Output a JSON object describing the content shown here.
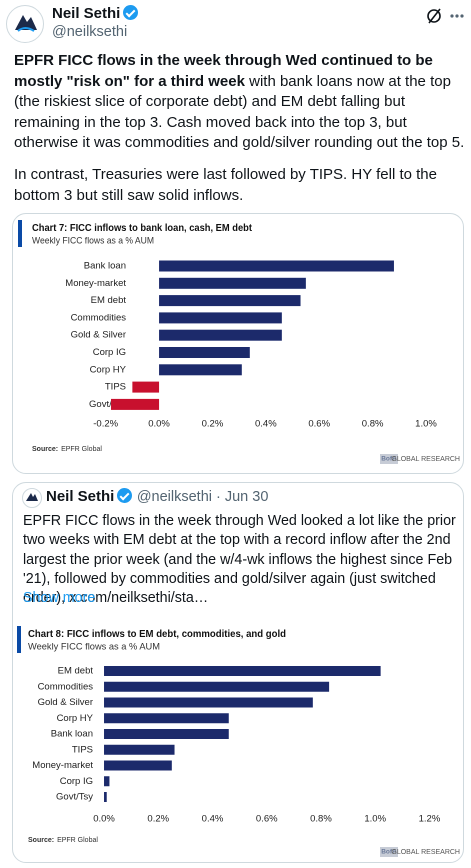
{
  "tweet": {
    "author": {
      "name": "Neil Sethi",
      "handle": "@neilksethi"
    },
    "text_bold": "EPFR FICC flows in the week through Wed continued to be mostly \"risk on\" for a third week",
    "text_rest": " with bank loans now at the top (the riskiest slice of corporate debt) and EM debt falling but remaining in the top 3. Cash moved back into the top 3, but otherwise it was commodities and gold/silver rounding out the top 5.",
    "text_2": "In contrast, Treasuries were last followed by TIPS. HY fell to the bottom 3 but still saw solid inflows."
  },
  "quoted_tweet": {
    "author": {
      "name": "Neil Sethi",
      "handle_date": "@neilksethi · Jun 30"
    },
    "text": "EPFR FICC flows in the week through Wed looked a lot like the prior two weeks with EM debt at the top with a record inflow after the 2nd largest the prior week (and the w/4-wk inflows the highest since Feb '21), followed by commodities and gold/silver again (just switched order), x.com/neilksethi/sta…",
    "show_more": "Show more"
  },
  "chart_data": [
    {
      "type": "bar",
      "orientation": "horizontal",
      "title": "Chart 7: FICC inflows to bank loan, cash, EM debt",
      "subtitle": "Weekly FICC flows as a % AUM",
      "categories": [
        "Bank loan",
        "Money-market",
        "EM debt",
        "Commodities",
        "Gold & Silver",
        "Corp IG",
        "Corp HY",
        "TIPS",
        "Govt/Tsy"
      ],
      "values": [
        0.88,
        0.55,
        0.53,
        0.46,
        0.46,
        0.34,
        0.31,
        -0.1,
        -0.18
      ],
      "color": "#1c2a6b",
      "negative_color": "#c8102e",
      "xlim": [
        -0.24,
        1.06
      ],
      "xticks": [
        {
          "value": -0.2,
          "label": "-0.2%"
        },
        {
          "value": 0,
          "label": "0.0%"
        },
        {
          "value": 0.2,
          "label": "0.2%"
        },
        {
          "value": 0.4,
          "label": "0.4%"
        },
        {
          "value": 0.6,
          "label": "0.6%"
        },
        {
          "value": 0.8,
          "label": "0.8%"
        },
        {
          "value": 1,
          "label": "1.0%"
        }
      ],
      "source_label": "Source:",
      "source": "EPFR Global",
      "brand_logo": "BofA",
      "brand": "GLOBAL RESEARCH"
    },
    {
      "type": "bar",
      "orientation": "horizontal",
      "title": "Chart 8: FICC inflows to EM debt, commodities, and gold",
      "subtitle": "Weekly FICC flows as a % AUM",
      "categories": [
        "EM debt",
        "Commodities",
        "Gold & Silver",
        "Corp HY",
        "Bank loan",
        "TIPS",
        "Money-market",
        "Corp IG",
        "Govt/Tsy"
      ],
      "values": [
        1.02,
        0.83,
        0.77,
        0.46,
        0.46,
        0.26,
        0.25,
        0.02,
        0.01
      ],
      "color": "#1c2a6b",
      "negative_color": "#c8102e",
      "xlim": [
        -0.02,
        1.25
      ],
      "xticks": [
        {
          "value": 0,
          "label": "0.0%"
        },
        {
          "value": 0.2,
          "label": "0.2%"
        },
        {
          "value": 0.4,
          "label": "0.4%"
        },
        {
          "value": 0.6,
          "label": "0.6%"
        },
        {
          "value": 0.8,
          "label": "0.8%"
        },
        {
          "value": 1,
          "label": "1.0%"
        },
        {
          "value": 1.2,
          "label": "1.2%"
        }
      ],
      "source_label": "Source:",
      "source": "EPFR Global",
      "brand_logo": "BofA",
      "brand": "GLOBAL RESEARCH"
    }
  ]
}
